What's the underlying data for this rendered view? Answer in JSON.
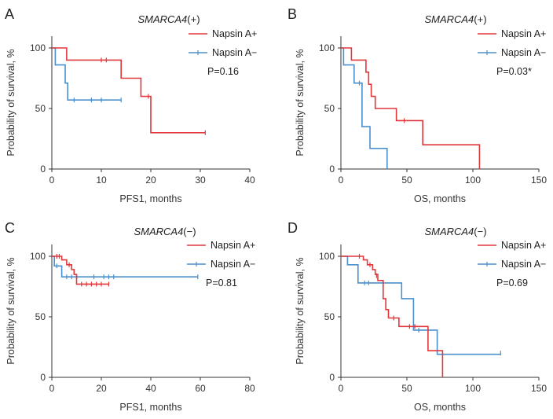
{
  "colors": {
    "napsin_pos": "#e0373b",
    "napsin_neg": "#4a90cc",
    "axis": "#333333"
  },
  "chart_data": [
    {
      "type": "line",
      "panel": "A",
      "title_gene": "SMARCA4",
      "title_suffix": "(+)",
      "xlabel": "PFS1, months",
      "ylabel": "Probability of survival, %",
      "xlim": [
        0,
        40
      ],
      "ylim": [
        0,
        100
      ],
      "xticks": [
        0,
        10,
        20,
        30,
        40
      ],
      "yticks": [
        0,
        50,
        100
      ],
      "pvalue": "P=0.16",
      "series": [
        {
          "name": "Napsin A+",
          "color": "#e0373b",
          "steps": [
            [
              0,
              100
            ],
            [
              3,
              100
            ],
            [
              3,
              90
            ],
            [
              14,
              90
            ],
            [
              14,
              75
            ],
            [
              18,
              75
            ],
            [
              18,
              60
            ],
            [
              20,
              60
            ],
            [
              20,
              30
            ],
            [
              31,
              30
            ]
          ],
          "censors": [
            [
              10,
              90
            ],
            [
              11,
              90
            ],
            [
              19.5,
              60
            ],
            [
              31,
              30
            ]
          ]
        },
        {
          "name": "Napsin A−",
          "color": "#4a90cc",
          "steps": [
            [
              0,
              100
            ],
            [
              0.7,
              100
            ],
            [
              0.7,
              86
            ],
            [
              2.7,
              86
            ],
            [
              2.7,
              71
            ],
            [
              3.2,
              71
            ],
            [
              3.2,
              57
            ],
            [
              14,
              57
            ]
          ],
          "censors": [
            [
              4.5,
              57
            ],
            [
              8,
              57
            ],
            [
              10,
              57
            ],
            [
              14,
              57
            ]
          ]
        }
      ]
    },
    {
      "type": "line",
      "panel": "B",
      "title_gene": "SMARCA4",
      "title_suffix": "(+)",
      "xlabel": "OS, months",
      "ylabel": "Probability of survival, %",
      "xlim": [
        0,
        150
      ],
      "ylim": [
        0,
        100
      ],
      "xticks": [
        0,
        50,
        100,
        150
      ],
      "yticks": [
        0,
        50,
        100
      ],
      "pvalue": "P=0.03*",
      "series": [
        {
          "name": "Napsin A+",
          "color": "#e0373b",
          "steps": [
            [
              0,
              100
            ],
            [
              8,
              100
            ],
            [
              8,
              90
            ],
            [
              19,
              90
            ],
            [
              19,
              80
            ],
            [
              21,
              80
            ],
            [
              21,
              70
            ],
            [
              23,
              70
            ],
            [
              23,
              60
            ],
            [
              26,
              60
            ],
            [
              26,
              50
            ],
            [
              42,
              50
            ],
            [
              42,
              40
            ],
            [
              62,
              40
            ],
            [
              62,
              20
            ],
            [
              105,
              20
            ],
            [
              105,
              0
            ]
          ],
          "censors": [
            [
              48,
              40
            ]
          ]
        },
        {
          "name": "Napsin A−",
          "color": "#4a90cc",
          "steps": [
            [
              0,
              100
            ],
            [
              2,
              100
            ],
            [
              2,
              86
            ],
            [
              10,
              86
            ],
            [
              10,
              71
            ],
            [
              16,
              71
            ],
            [
              16,
              35
            ],
            [
              22,
              35
            ],
            [
              22,
              17
            ],
            [
              35,
              17
            ],
            [
              35,
              0
            ]
          ],
          "censors": [
            [
              14,
              71
            ]
          ]
        }
      ]
    },
    {
      "type": "line",
      "panel": "C",
      "title_gene": "SMARCA4",
      "title_suffix": "(−)",
      "xlabel": "PFS1, months",
      "ylabel": "Probability of survival, %",
      "xlim": [
        0,
        80
      ],
      "ylim": [
        0,
        100
      ],
      "xticks": [
        0,
        20,
        40,
        60,
        80
      ],
      "yticks": [
        0,
        50,
        100
      ],
      "pvalue": "P=0.81",
      "series": [
        {
          "name": "Napsin A+",
          "color": "#e0373b",
          "steps": [
            [
              0,
              100
            ],
            [
              4,
              100
            ],
            [
              4,
              97
            ],
            [
              6,
              97
            ],
            [
              6,
              93
            ],
            [
              8,
              93
            ],
            [
              8,
              89
            ],
            [
              9,
              89
            ],
            [
              9,
              85
            ],
            [
              10,
              85
            ],
            [
              10,
              77
            ],
            [
              23,
              77
            ]
          ],
          "censors": [
            [
              2,
              100
            ],
            [
              3,
              100
            ],
            [
              7,
              93
            ],
            [
              12,
              77
            ],
            [
              14,
              77
            ],
            [
              16,
              77
            ],
            [
              18,
              77
            ],
            [
              20,
              77
            ],
            [
              23,
              77
            ]
          ]
        },
        {
          "name": "Napsin A−",
          "color": "#4a90cc",
          "steps": [
            [
              0,
              100
            ],
            [
              1,
              100
            ],
            [
              1,
              92
            ],
            [
              4,
              92
            ],
            [
              4,
              83
            ],
            [
              59,
              83
            ]
          ],
          "censors": [
            [
              2,
              92
            ],
            [
              6,
              83
            ],
            [
              8,
              83
            ],
            [
              10,
              83
            ],
            [
              17,
              83
            ],
            [
              21,
              83
            ],
            [
              23,
              83
            ],
            [
              25,
              83
            ],
            [
              59,
              83
            ]
          ]
        }
      ]
    },
    {
      "type": "line",
      "panel": "D",
      "title_gene": "SMARCA4",
      "title_suffix": "(−)",
      "xlabel": "OS, months",
      "ylabel": "Probability of survival, %",
      "xlim": [
        0,
        150
      ],
      "ylim": [
        0,
        100
      ],
      "xticks": [
        0,
        50,
        100,
        150
      ],
      "yticks": [
        0,
        50,
        100
      ],
      "pvalue": "P=0.69",
      "series": [
        {
          "name": "Napsin A+",
          "color": "#e0373b",
          "steps": [
            [
              0,
              100
            ],
            [
              17,
              100
            ],
            [
              17,
              97
            ],
            [
              20,
              97
            ],
            [
              20,
              93
            ],
            [
              24,
              93
            ],
            [
              24,
              89
            ],
            [
              26,
              89
            ],
            [
              26,
              85
            ],
            [
              28,
              85
            ],
            [
              28,
              80
            ],
            [
              32,
              80
            ],
            [
              32,
              65
            ],
            [
              34,
              65
            ],
            [
              34,
              56
            ],
            [
              36,
              56
            ],
            [
              36,
              49
            ],
            [
              44,
              49
            ],
            [
              44,
              42
            ],
            [
              66,
              42
            ],
            [
              66,
              22
            ],
            [
              77,
              22
            ],
            [
              77,
              0
            ]
          ],
          "censors": [
            [
              14,
              100
            ],
            [
              22,
              93
            ],
            [
              27,
              84
            ],
            [
              40,
              49
            ],
            [
              52,
              42
            ],
            [
              56,
              42
            ]
          ]
        },
        {
          "name": "Napsin A−",
          "color": "#4a90cc",
          "steps": [
            [
              0,
              100
            ],
            [
              5,
              100
            ],
            [
              5,
              93
            ],
            [
              13,
              93
            ],
            [
              13,
              78
            ],
            [
              27,
              78
            ],
            [
              27,
              78
            ],
            [
              46,
              78
            ],
            [
              46,
              65
            ],
            [
              55,
              65
            ],
            [
              55,
              39
            ],
            [
              73,
              39
            ],
            [
              73,
              19
            ],
            [
              121,
              19
            ]
          ],
          "censors": [
            [
              18,
              78
            ],
            [
              21,
              78
            ],
            [
              59,
              39
            ],
            [
              121,
              20
            ]
          ]
        }
      ]
    }
  ]
}
